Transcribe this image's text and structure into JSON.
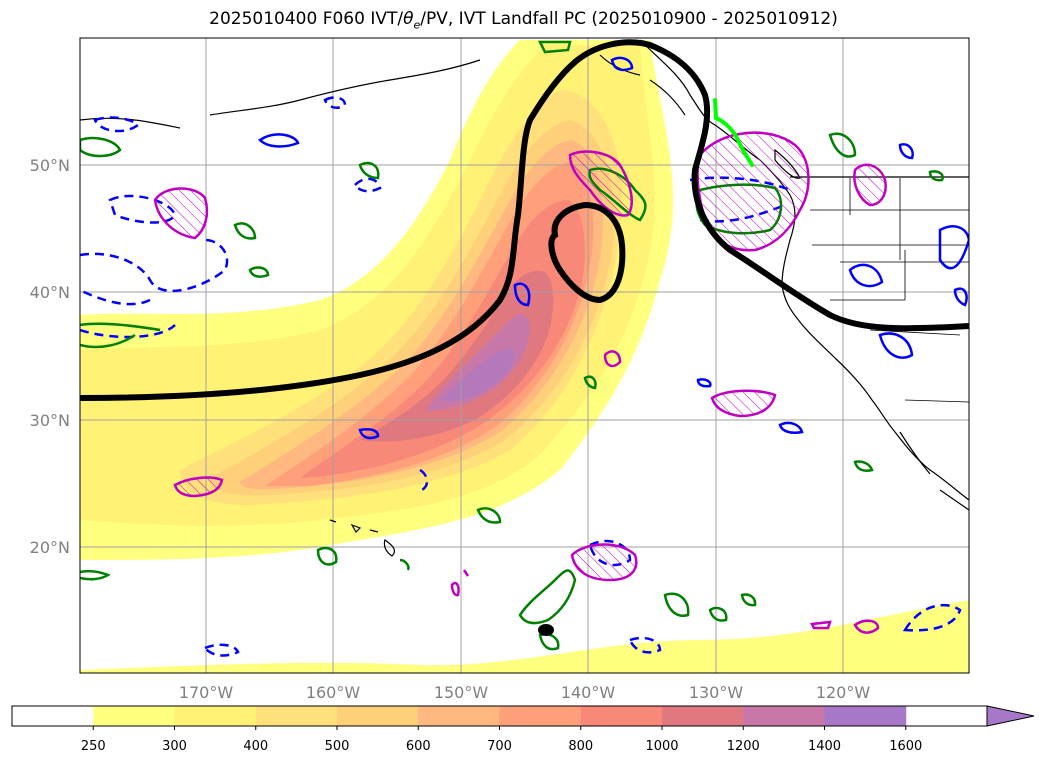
{
  "title": {
    "prefix": "2025010400 F060 IVT/",
    "theta": "θ",
    "theta_sub": "e",
    "suffix": "/PV, IVT Landfall PC (2025010900 - 2025010912)"
  },
  "map": {
    "lon_ticks": [
      "170°W",
      "160°W",
      "150°W",
      "140°W",
      "130°W",
      "120°W"
    ],
    "lat_ticks": [
      "50°N",
      "40°N",
      "30°N",
      "20°N"
    ],
    "grid": true
  },
  "colorbar": {
    "bounds": [
      "250",
      "300",
      "400",
      "500",
      "600",
      "700",
      "800",
      "1000",
      "1200",
      "1400",
      "1600"
    ],
    "colors": [
      "#ffffff",
      "#ffff80",
      "#fff275",
      "#ffe07a",
      "#ffd07a",
      "#ffb880",
      "#ffa07a",
      "#f88878",
      "#e07880",
      "#c878a8",
      "#a878c8"
    ],
    "extend": "max"
  },
  "contour_colors": {
    "pc_line": "#000000",
    "theta_e_pos": "#008000",
    "theta_e_neg": "#0000ff",
    "pv": "#c000c0",
    "landfall": "#00ff00"
  }
}
